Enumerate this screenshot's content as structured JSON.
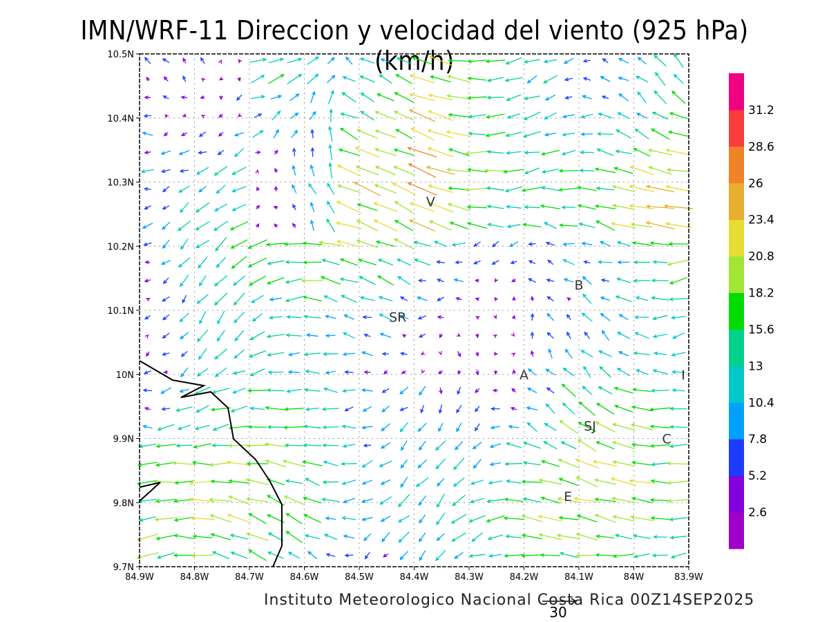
{
  "title": "IMN/WRF-11 Direccion y velocidad del viento (925 hPa)(km/h)",
  "footer": "Instituto Meteorologico Nacional Costa Rica 00Z14SEP2025",
  "reference_vector": {
    "label": "30",
    "speed": 30
  },
  "map": {
    "lon_range": [
      -84.9,
      -83.9
    ],
    "lat_range": [
      9.7,
      10.5
    ],
    "x_ticks": [
      "84.9W",
      "84.8W",
      "84.7W",
      "84.6W",
      "84.5W",
      "84.4W",
      "84.3W",
      "84.2W",
      "84.1W",
      "84W",
      "83.9W"
    ],
    "y_ticks": [
      "9.7N",
      "9.8N",
      "9.9N",
      "10N",
      "10.1N",
      "10.2N",
      "10.3N",
      "10.4N",
      "10.5N"
    ],
    "stations": [
      {
        "label": "V",
        "lon": -84.37,
        "lat": 10.27
      },
      {
        "label": "B",
        "lon": -84.1,
        "lat": 10.14
      },
      {
        "label": "SR",
        "lon": -84.43,
        "lat": 10.09
      },
      {
        "label": "A",
        "lon": -84.2,
        "lat": 10.0
      },
      {
        "label": "I",
        "lon": -83.91,
        "lat": 10.0
      },
      {
        "label": "SJ",
        "lon": -84.08,
        "lat": 9.92
      },
      {
        "label": "C",
        "lon": -83.94,
        "lat": 9.9
      },
      {
        "label": "E",
        "lon": -84.12,
        "lat": 9.81
      }
    ]
  },
  "colorbar": {
    "levels": [
      "2.6",
      "5.2",
      "7.8",
      "10.4",
      "13",
      "15.6",
      "18.2",
      "20.8",
      "23.4",
      "26",
      "28.6",
      "31.2"
    ],
    "colors": [
      "#a000c8",
      "#8200dc",
      "#1e3cff",
      "#00a0ff",
      "#00c8c8",
      "#00d28c",
      "#00dc00",
      "#a0e632",
      "#e6dc32",
      "#e6af2d",
      "#f08228",
      "#fa3c3c",
      "#f00082"
    ]
  }
}
